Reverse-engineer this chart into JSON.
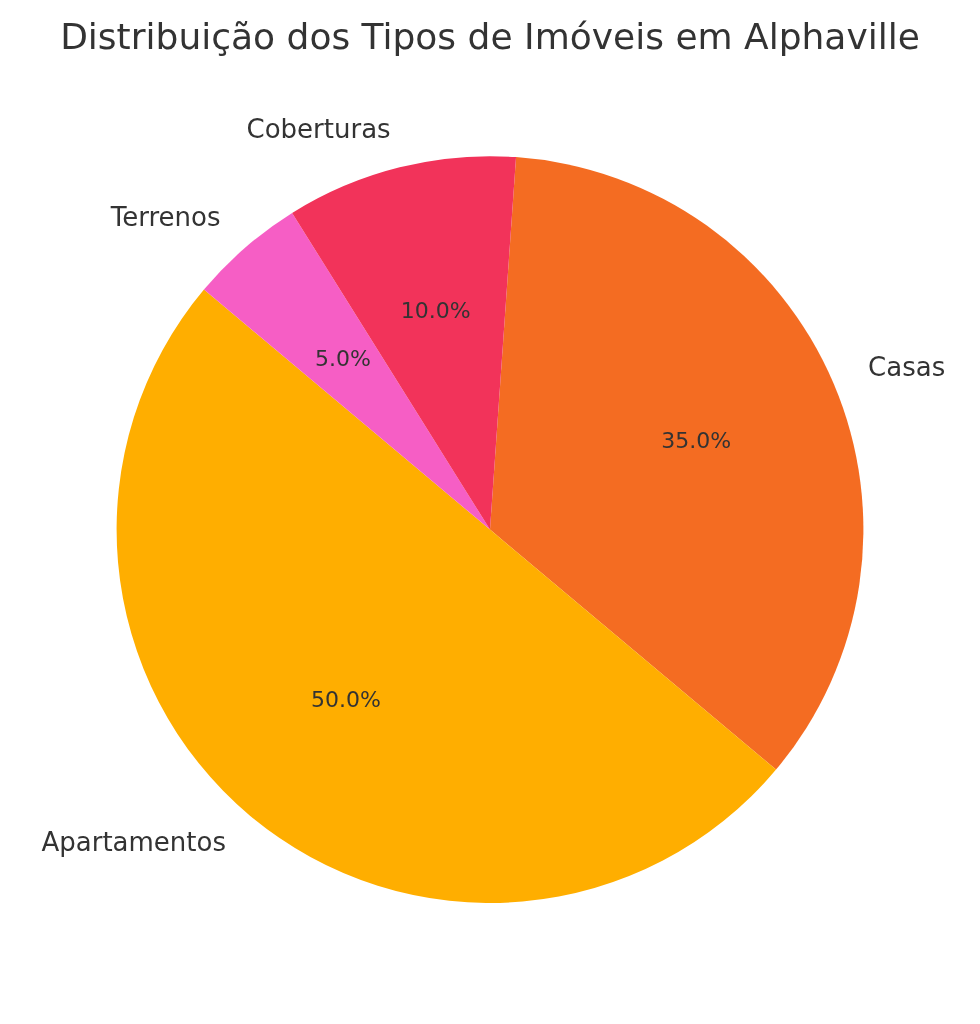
{
  "chart_data": {
    "type": "pie",
    "title": "Distribuição dos Tipos de Imóveis em Alphaville",
    "categories": [
      "Casas",
      "Apartamentos",
      "Terrenos",
      "Coberturas"
    ],
    "values": [
      35,
      50,
      5,
      10
    ],
    "colors": [
      "#f46c22",
      "#ffae00",
      "#f65ec5",
      "#f2335a"
    ],
    "value_labels": [
      "35.0%",
      "50.0%",
      "5.0%",
      "10.0%"
    ],
    "legend": false
  }
}
